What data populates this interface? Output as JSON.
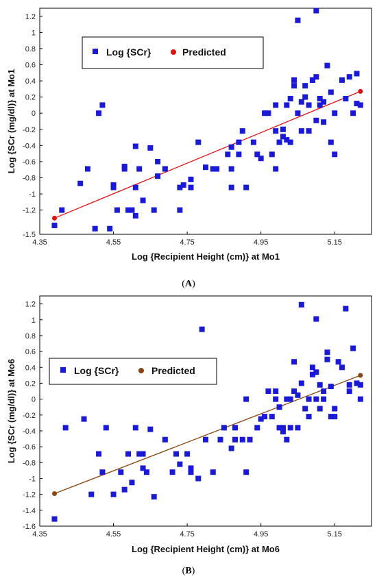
{
  "chart_data": [
    {
      "type": "scatter",
      "panel_label": "A",
      "xlabel": "Log {Recipient Height (cm)} at Mo1",
      "ylabel": "Log {SCr (mg/dl)} at Mo1",
      "xlim": [
        4.35,
        5.25
      ],
      "ylim": [
        -1.5,
        1.3
      ],
      "x_ticks": [
        "4.35",
        "4.55",
        "4.75",
        "4.95",
        "5.15"
      ],
      "x_tick_values": [
        4.35,
        4.55,
        4.75,
        4.95,
        5.15
      ],
      "y_ticks": [
        "1.2",
        "1",
        "0.8",
        "0.6",
        "0.4",
        "0.2",
        "0",
        "-0.2",
        "-0.4",
        "-0.6",
        "-0.8",
        "-1",
        "-1.2",
        "-1.5"
      ],
      "y_tick_values": [
        1.2,
        1,
        0.8,
        0.6,
        0.4,
        0.2,
        0,
        -0.2,
        -0.4,
        -0.6,
        -0.8,
        -1,
        -1.2,
        -1.5
      ],
      "grid": false,
      "legend_position": "top-left",
      "series": [
        {
          "name": "Log {SCr}",
          "marker": "square",
          "color": "#1a1ad6",
          "points": [
            [
              4.39,
              -1.39
            ],
            [
              4.41,
              -1.2
            ],
            [
              4.46,
              -0.87
            ],
            [
              4.48,
              -0.69
            ],
            [
              4.5,
              -1.43
            ],
            [
              4.51,
              0.0
            ],
            [
              4.52,
              0.1
            ],
            [
              4.54,
              -1.43
            ],
            [
              4.55,
              -0.92
            ],
            [
              4.55,
              -0.89
            ],
            [
              4.56,
              -1.2
            ],
            [
              4.58,
              -0.66
            ],
            [
              4.58,
              -0.69
            ],
            [
              4.59,
              -1.2
            ],
            [
              4.6,
              -1.2
            ],
            [
              4.61,
              -1.27
            ],
            [
              4.61,
              -0.92
            ],
            [
              4.61,
              -0.41
            ],
            [
              4.62,
              -0.69
            ],
            [
              4.63,
              -1.08
            ],
            [
              4.65,
              -0.43
            ],
            [
              4.66,
              -1.2
            ],
            [
              4.67,
              -0.6
            ],
            [
              4.67,
              -0.78
            ],
            [
              4.69,
              -0.69
            ],
            [
              4.73,
              -1.2
            ],
            [
              4.73,
              -0.92
            ],
            [
              4.74,
              -0.89
            ],
            [
              4.76,
              -0.92
            ],
            [
              4.76,
              -0.82
            ],
            [
              4.78,
              -0.36
            ],
            [
              4.8,
              -0.67
            ],
            [
              4.82,
              -0.69
            ],
            [
              4.83,
              -0.69
            ],
            [
              4.86,
              -0.51
            ],
            [
              4.87,
              -0.69
            ],
            [
              4.87,
              -0.92
            ],
            [
              4.87,
              -0.42
            ],
            [
              4.89,
              -0.36
            ],
            [
              4.89,
              -0.51
            ],
            [
              4.9,
              -0.22
            ],
            [
              4.91,
              -0.92
            ],
            [
              4.93,
              -0.36
            ],
            [
              4.94,
              -0.51
            ],
            [
              4.95,
              -0.56
            ],
            [
              4.96,
              0.0
            ],
            [
              4.97,
              0.0
            ],
            [
              4.98,
              -0.51
            ],
            [
              4.99,
              -0.69
            ],
            [
              4.99,
              -0.22
            ],
            [
              4.99,
              0.1
            ],
            [
              5.0,
              -0.36
            ],
            [
              5.01,
              -0.29
            ],
            [
              5.01,
              -0.2
            ],
            [
              5.02,
              -0.33
            ],
            [
              5.02,
              0.1
            ],
            [
              5.03,
              -0.36
            ],
            [
              5.03,
              0.18
            ],
            [
              5.04,
              0.34
            ],
            [
              5.04,
              0.41
            ],
            [
              5.05,
              1.15
            ],
            [
              5.05,
              0.0
            ],
            [
              5.06,
              -0.22
            ],
            [
              5.06,
              0.14
            ],
            [
              5.07,
              0.34
            ],
            [
              5.07,
              0.2
            ],
            [
              5.08,
              0.1
            ],
            [
              5.08,
              -0.22
            ],
            [
              5.09,
              0.41
            ],
            [
              5.09,
              0.41
            ],
            [
              5.1,
              0.45
            ],
            [
              5.1,
              1.27
            ],
            [
              5.1,
              -0.09
            ],
            [
              5.11,
              0.1
            ],
            [
              5.11,
              0.18
            ],
            [
              5.12,
              0.14
            ],
            [
              5.12,
              -0.11
            ],
            [
              5.13,
              0.59
            ],
            [
              5.14,
              0.26
            ],
            [
              5.14,
              -0.36
            ],
            [
              5.15,
              -0.51
            ],
            [
              5.15,
              0.0
            ],
            [
              5.17,
              0.41
            ],
            [
              5.18,
              0.18
            ],
            [
              5.19,
              0.45
            ],
            [
              5.2,
              0.0
            ],
            [
              5.21,
              0.49
            ],
            [
              5.21,
              0.12
            ],
            [
              5.22,
              0.1
            ]
          ]
        },
        {
          "name": "Predicted",
          "marker": "circle-line",
          "color": "#e01010",
          "points": [
            [
              4.39,
              -1.3
            ],
            [
              5.22,
              0.27
            ]
          ]
        }
      ]
    },
    {
      "type": "scatter",
      "panel_label": "B",
      "xlabel": "Log {Recipient Height (cm)} at Mo6",
      "ylabel": "Log {SCr (mg/dl)} at Mo6",
      "xlim": [
        4.35,
        5.25
      ],
      "ylim": [
        -1.6,
        1.3
      ],
      "x_ticks": [
        "4.35",
        "4.55",
        "4.75",
        "4.95",
        "5.15"
      ],
      "x_tick_values": [
        4.35,
        4.55,
        4.75,
        4.95,
        5.15
      ],
      "y_ticks": [
        "1.2",
        "1",
        "0.8",
        "0.6",
        "0.4",
        "0.2",
        "0",
        "-0.2",
        "-0.4",
        "-0.6",
        "-0.8",
        "-1",
        "-1.2",
        "-1.4",
        "-1.6"
      ],
      "y_tick_values": [
        1.2,
        1,
        0.8,
        0.6,
        0.4,
        0.2,
        0,
        -0.2,
        -0.4,
        -0.6,
        -0.8,
        -1,
        -1.2,
        -1.4,
        -1.6
      ],
      "grid": false,
      "legend_position": "left",
      "series": [
        {
          "name": "Log {SCr}",
          "marker": "square",
          "color": "#1a1ad6",
          "points": [
            [
              4.39,
              -1.51
            ],
            [
              4.42,
              -0.36
            ],
            [
              4.47,
              -0.25
            ],
            [
              4.49,
              -1.2
            ],
            [
              4.51,
              -0.69
            ],
            [
              4.52,
              -0.92
            ],
            [
              4.53,
              -0.36
            ],
            [
              4.55,
              -1.2
            ],
            [
              4.57,
              -0.92
            ],
            [
              4.58,
              -1.14
            ],
            [
              4.59,
              -0.69
            ],
            [
              4.6,
              -1.05
            ],
            [
              4.61,
              -0.36
            ],
            [
              4.62,
              -0.69
            ],
            [
              4.63,
              -0.69
            ],
            [
              4.63,
              -0.87
            ],
            [
              4.64,
              -0.92
            ],
            [
              4.65,
              -0.38
            ],
            [
              4.66,
              -1.23
            ],
            [
              4.69,
              -0.51
            ],
            [
              4.71,
              -0.92
            ],
            [
              4.72,
              -0.69
            ],
            [
              4.73,
              -0.82
            ],
            [
              4.75,
              -0.69
            ],
            [
              4.76,
              -0.92
            ],
            [
              4.76,
              -0.87
            ],
            [
              4.78,
              -1.0
            ],
            [
              4.79,
              0.88
            ],
            [
              4.8,
              -0.51
            ],
            [
              4.82,
              -0.92
            ],
            [
              4.84,
              -0.51
            ],
            [
              4.85,
              -0.36
            ],
            [
              4.87,
              -0.62
            ],
            [
              4.88,
              -0.36
            ],
            [
              4.88,
              -0.51
            ],
            [
              4.9,
              -0.51
            ],
            [
              4.91,
              0.0
            ],
            [
              4.91,
              -0.92
            ],
            [
              4.92,
              -0.51
            ],
            [
              4.94,
              -0.36
            ],
            [
              4.95,
              -0.25
            ],
            [
              4.96,
              -0.22
            ],
            [
              4.97,
              0.1
            ],
            [
              4.98,
              -0.22
            ],
            [
              4.99,
              0.1
            ],
            [
              4.99,
              0.0
            ],
            [
              5.0,
              -0.1
            ],
            [
              5.0,
              -0.36
            ],
            [
              5.01,
              -0.36
            ],
            [
              5.01,
              -0.41
            ],
            [
              5.02,
              0.0
            ],
            [
              5.02,
              -0.51
            ],
            [
              5.03,
              0.0
            ],
            [
              5.03,
              -0.36
            ],
            [
              5.04,
              0.47
            ],
            [
              5.04,
              0.1
            ],
            [
              5.05,
              -0.36
            ],
            [
              5.05,
              0.05
            ],
            [
              5.06,
              1.19
            ],
            [
              5.06,
              0.2
            ],
            [
              5.07,
              -0.12
            ],
            [
              5.08,
              0.0
            ],
            [
              5.08,
              -0.22
            ],
            [
              5.09,
              0.4
            ],
            [
              5.09,
              0.31
            ],
            [
              5.1,
              0.34
            ],
            [
              5.1,
              1.01
            ],
            [
              5.1,
              0.0
            ],
            [
              5.11,
              0.18
            ],
            [
              5.11,
              -0.12
            ],
            [
              5.12,
              0.1
            ],
            [
              5.12,
              0.0
            ],
            [
              5.13,
              0.59
            ],
            [
              5.13,
              0.5
            ],
            [
              5.14,
              0.16
            ],
            [
              5.14,
              -0.22
            ],
            [
              5.15,
              -0.12
            ],
            [
              5.15,
              -0.22
            ],
            [
              5.16,
              0.47
            ],
            [
              5.17,
              0.4
            ],
            [
              5.18,
              1.14
            ],
            [
              5.19,
              0.1
            ],
            [
              5.2,
              0.64
            ],
            [
              5.21,
              0.2
            ],
            [
              5.22,
              0.18
            ],
            [
              5.22,
              0.0
            ],
            [
              5.19,
              0.18
            ]
          ]
        },
        {
          "name": "Predicted",
          "marker": "circle-line",
          "color": "#8b4513",
          "points": [
            [
              4.39,
              -1.19
            ],
            [
              5.22,
              0.3
            ]
          ]
        }
      ]
    }
  ]
}
